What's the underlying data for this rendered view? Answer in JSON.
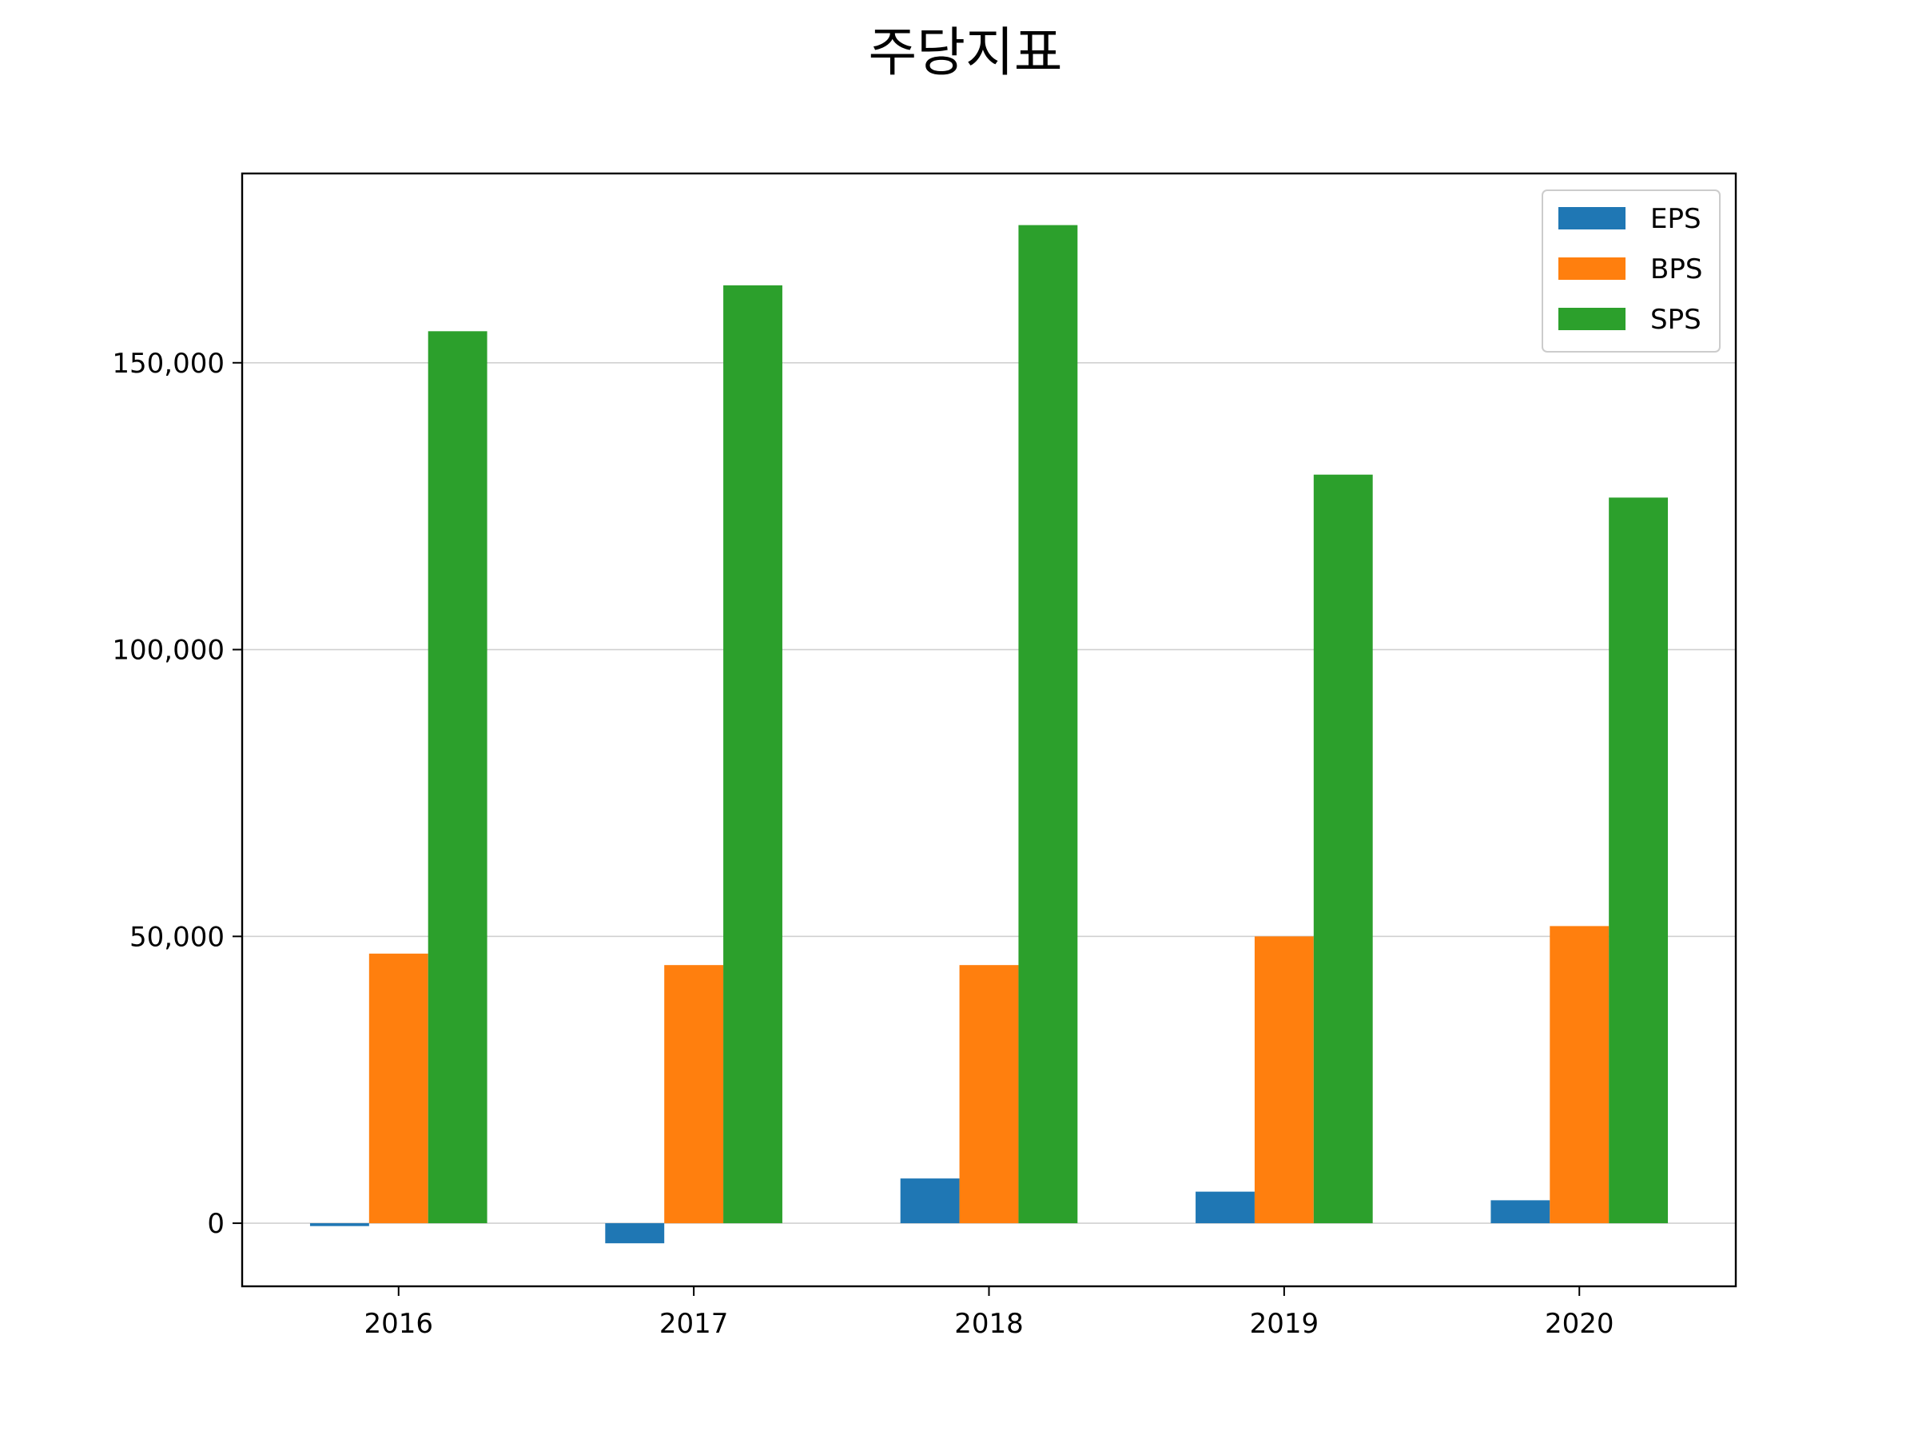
{
  "chart_data": {
    "type": "bar",
    "title": "주당지표",
    "xlabel": "",
    "ylabel": "",
    "categories": [
      "2016",
      "2017",
      "2018",
      "2019",
      "2020"
    ],
    "series": [
      {
        "name": "EPS",
        "color": "#1f77b4",
        "values": [
          -500,
          -3500,
          7800,
          5500,
          4000
        ]
      },
      {
        "name": "BPS",
        "color": "#ff7f0e",
        "values": [
          47000,
          45000,
          45000,
          50000,
          51800
        ]
      },
      {
        "name": "SPS",
        "color": "#2ca02c",
        "values": [
          155500,
          163500,
          174000,
          130500,
          126500
        ]
      }
    ],
    "ylim": [
      -11000,
      183000
    ],
    "yticks": [
      0,
      50000,
      100000,
      150000
    ],
    "ytick_labels": [
      "0",
      "50,000",
      "100,000",
      "150,000"
    ],
    "grid": "y",
    "legend_position": "top-right"
  }
}
